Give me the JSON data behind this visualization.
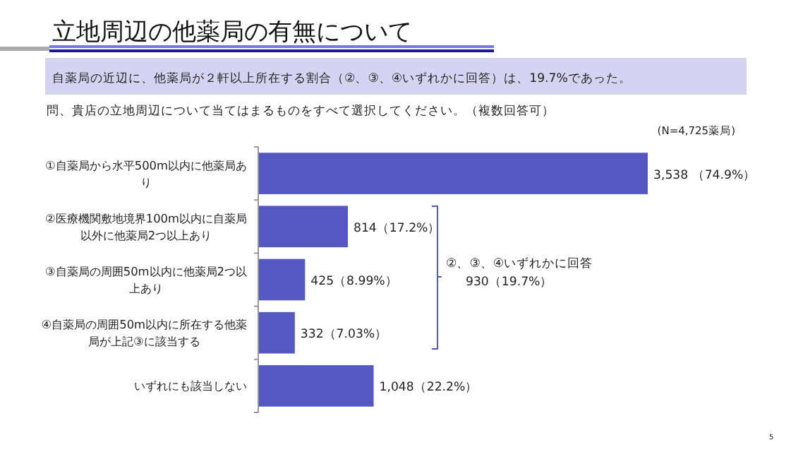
{
  "chart_data": {
    "type": "bar",
    "orientation": "horizontal",
    "title": "立地周辺の他薬局の有無について",
    "subtitle": "自薬局の近辺に、他薬局が２軒以上所在する割合（②、③、④いずれかに回答）は、19.7%であった。",
    "annotations": [
      "問、貴店の立地周辺について当てはまるものをすべて選択してください。（複数回答可）",
      "(N=4,725薬局)",
      "②、③、④いずれかに回答",
      "930（19.7%）",
      "5"
    ],
    "categories": [
      "①自薬局から水平500m以内に他薬局あり",
      "②医療機関敷地境界100m以内に自薬局以外に他薬局2つ以上あり",
      "③自薬局の周囲50m以内に他薬局2つ以上あり",
      "④自薬局の周囲50m以内に所在する他薬局が上記③に該当する",
      "いずれにも該当しない"
    ],
    "values": [
      3538,
      814,
      425,
      332,
      1048
    ],
    "value_labels": [
      "3,538 （74.9%）",
      "814（17.2%）",
      "425（8.99%）",
      "332（7.03%）",
      "1,048（22.2%）"
    ],
    "color": "#5558c0",
    "grid": false
  }
}
